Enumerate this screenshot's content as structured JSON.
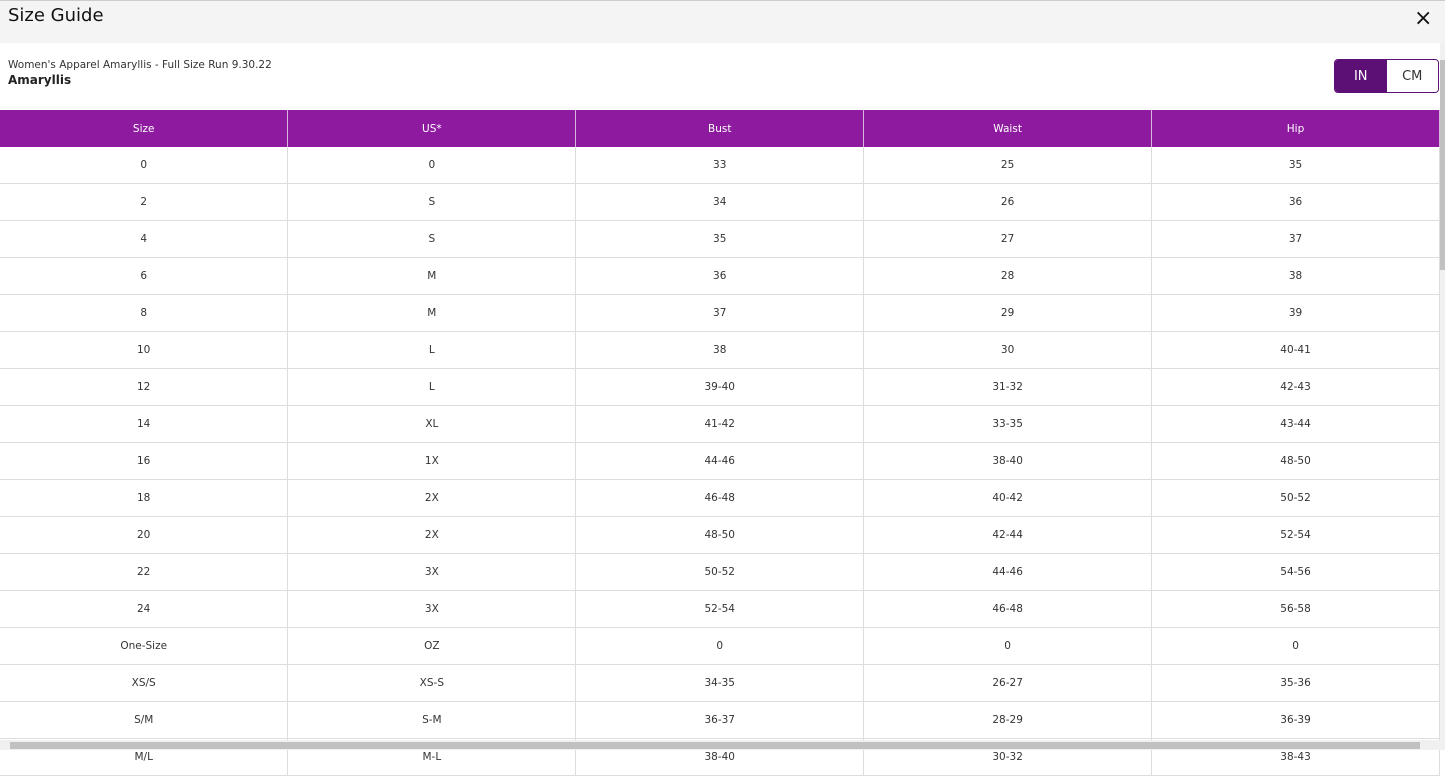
{
  "header": {
    "title": "Size Guide",
    "close": "×"
  },
  "subtitle": "Women's Apparel Amaryllis - Full Size Run 9.30.22",
  "brand": "Amaryllis",
  "units": [
    "IN",
    "CM"
  ],
  "table": {
    "columns": [
      "Size",
      "US*",
      "Bust",
      "Waist",
      "Hip"
    ],
    "rows": [
      [
        "0",
        "0",
        "33",
        "25",
        "35"
      ],
      [
        "2",
        "S",
        "34",
        "26",
        "36"
      ],
      [
        "4",
        "S",
        "35",
        "27",
        "37"
      ],
      [
        "6",
        "M",
        "36",
        "28",
        "38"
      ],
      [
        "8",
        "M",
        "37",
        "29",
        "39"
      ],
      [
        "10",
        "L",
        "38",
        "30",
        "40-41"
      ],
      [
        "12",
        "L",
        "39-40",
        "31-32",
        "42-43"
      ],
      [
        "14",
        "XL",
        "41-42",
        "33-35",
        "43-44"
      ],
      [
        "16",
        "1X",
        "44-46",
        "38-40",
        "48-50"
      ],
      [
        "18",
        "2X",
        "46-48",
        "40-42",
        "50-52"
      ],
      [
        "20",
        "2X",
        "48-50",
        "42-44",
        "52-54"
      ],
      [
        "22",
        "3X",
        "50-52",
        "44-46",
        "54-56"
      ],
      [
        "24",
        "3X",
        "52-54",
        "46-48",
        "56-58"
      ],
      [
        "One-Size",
        "OZ",
        "0",
        "0",
        "0"
      ],
      [
        "XS/S",
        "XS-S",
        "34-35",
        "26-27",
        "35-36"
      ],
      [
        "S/M",
        "S-M",
        "36-37",
        "28-29",
        "36-39"
      ],
      [
        "M/L",
        "M-L",
        "38-40",
        "30-32",
        "38-43"
      ]
    ]
  }
}
